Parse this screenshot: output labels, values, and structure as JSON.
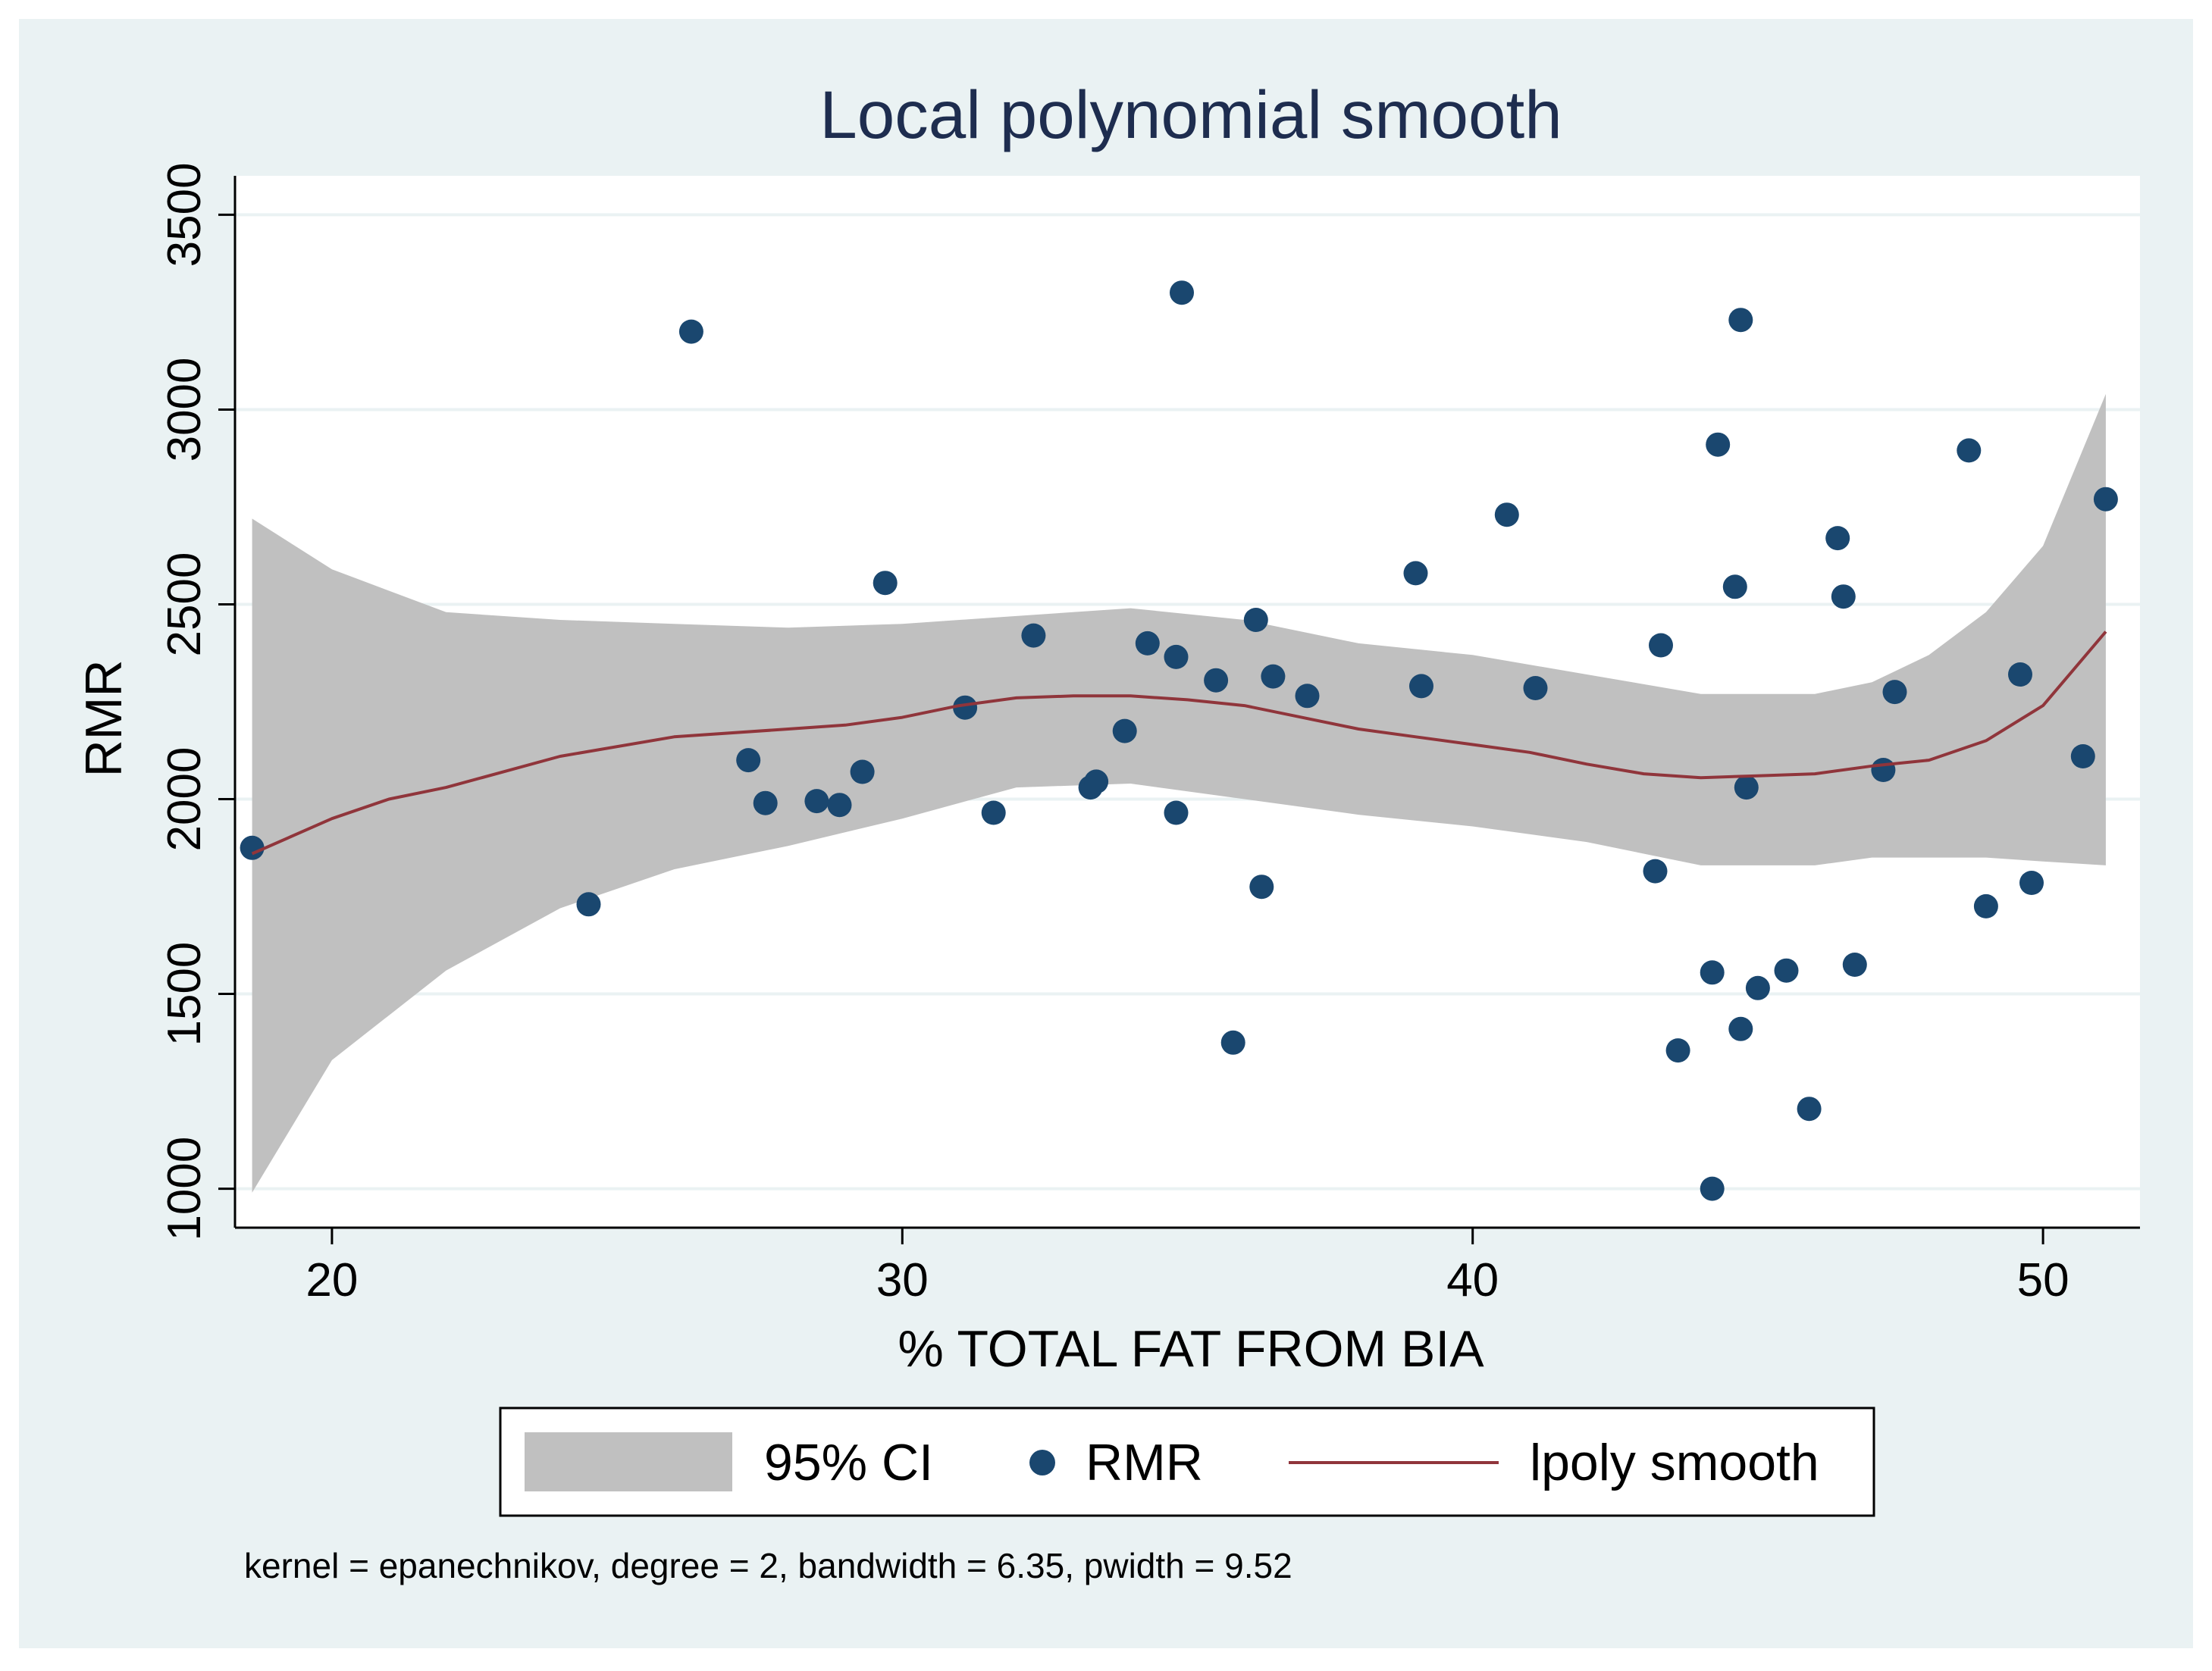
{
  "chart_data": {
    "type": "scatter",
    "title": "Local polynomial smooth",
    "xlabel": "% TOTAL FAT FROM BIA",
    "ylabel": "RMR",
    "xlim": [
      18.3,
      51.7
    ],
    "ylim": [
      900,
      3600
    ],
    "x_ticks": [
      20,
      30,
      40,
      50
    ],
    "y_ticks": [
      1000,
      1500,
      2000,
      2500,
      3000,
      3500
    ],
    "grid": "horizontal",
    "legend": {
      "position": "bottom",
      "entries": [
        "95% CI",
        "RMR",
        "lpoly smooth"
      ]
    },
    "note": "kernel = epanechnikov, degree = 2, bandwidth = 6.35, pwidth = 9.52",
    "colors": {
      "ci_band": "#c0c0c0",
      "points": "#1a476f",
      "smooth": "#90353b",
      "plot_bg": "#ffffff",
      "outer_bg": "#eaf2f3",
      "grid": "#eaf2f3",
      "text": "#000000",
      "title": "#1e2d4f"
    },
    "series": [
      {
        "name": "95% CI",
        "type": "area",
        "x": [
          18.6,
          20,
          22,
          24,
          26,
          28,
          30,
          32,
          34,
          36,
          38,
          40,
          42,
          44,
          46,
          47,
          48,
          49,
          50,
          51.1
        ],
        "upper": [
          2720,
          2590,
          2480,
          2460,
          2450,
          2440,
          2450,
          2470,
          2490,
          2460,
          2400,
          2370,
          2320,
          2270,
          2270,
          2300,
          2370,
          2480,
          2650,
          3040
        ],
        "lower": [
          990,
          1330,
          1560,
          1720,
          1820,
          1880,
          1950,
          2030,
          2040,
          2000,
          1960,
          1930,
          1890,
          1830,
          1830,
          1850,
          1850,
          1850,
          1840,
          1830
        ]
      },
      {
        "name": "RMR",
        "type": "scatter",
        "points": [
          [
            18.6,
            1875
          ],
          [
            24.5,
            1730
          ],
          [
            26.3,
            3200
          ],
          [
            27.3,
            2100
          ],
          [
            27.6,
            1990
          ],
          [
            28.5,
            1995
          ],
          [
            28.9,
            1985
          ],
          [
            29.3,
            2070
          ],
          [
            29.7,
            2555
          ],
          [
            31.1,
            2235
          ],
          [
            31.6,
            1965
          ],
          [
            32.3,
            2420
          ],
          [
            33.3,
            2030
          ],
          [
            33.4,
            2045
          ],
          [
            33.9,
            2175
          ],
          [
            34.3,
            2400
          ],
          [
            34.8,
            2365
          ],
          [
            34.8,
            1965
          ],
          [
            34.9,
            3300
          ],
          [
            35.5,
            2305
          ],
          [
            35.8,
            1375
          ],
          [
            36.2,
            2460
          ],
          [
            36.3,
            1775
          ],
          [
            36.5,
            2315
          ],
          [
            37.1,
            2265
          ],
          [
            39.0,
            2580
          ],
          [
            39.1,
            2290
          ],
          [
            40.6,
            2730
          ],
          [
            41.1,
            2285
          ],
          [
            43.2,
            1815
          ],
          [
            43.3,
            2395
          ],
          [
            43.6,
            1355
          ],
          [
            44.2,
            1000
          ],
          [
            44.2,
            1555
          ],
          [
            44.3,
            2910
          ],
          [
            44.6,
            2545
          ],
          [
            44.7,
            1410
          ],
          [
            44.7,
            3230
          ],
          [
            44.8,
            2030
          ],
          [
            45.0,
            1515
          ],
          [
            45.5,
            1560
          ],
          [
            45.9,
            1205
          ],
          [
            46.4,
            2670
          ],
          [
            46.5,
            2520
          ],
          [
            46.7,
            1575
          ],
          [
            47.2,
            2075
          ],
          [
            47.4,
            2275
          ],
          [
            48.7,
            2895
          ],
          [
            49.0,
            1725
          ],
          [
            49.6,
            2320
          ],
          [
            49.8,
            1785
          ],
          [
            50.7,
            2110
          ],
          [
            51.1,
            2770
          ]
        ]
      },
      {
        "name": "lpoly smooth",
        "type": "line",
        "x": [
          18.6,
          20,
          21,
          22,
          24,
          26,
          28,
          29,
          30,
          31,
          32,
          33,
          34,
          35,
          36,
          37,
          38,
          39,
          40,
          41,
          42,
          43,
          44,
          45,
          46,
          47,
          48,
          49,
          50,
          51.1
        ],
        "y": [
          1860,
          1950,
          2000,
          2030,
          2110,
          2160,
          2180,
          2190,
          2210,
          2240,
          2260,
          2265,
          2265,
          2255,
          2240,
          2210,
          2180,
          2160,
          2140,
          2120,
          2090,
          2065,
          2055,
          2060,
          2065,
          2085,
          2100,
          2150,
          2240,
          2430
        ]
      }
    ]
  }
}
